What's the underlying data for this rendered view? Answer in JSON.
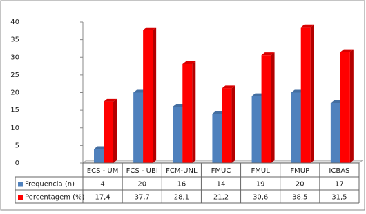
{
  "chart_data": {
    "type": "bar",
    "categories": [
      "ECS - UM",
      "FCS - UBI",
      "FCM-UNL",
      "FMUC",
      "FMUL",
      "FMUP",
      "ICBAS"
    ],
    "series": [
      {
        "name": "Frequencia (n)",
        "color": "#4f81bd",
        "values": [
          4,
          20,
          16,
          14,
          19,
          20,
          17
        ]
      },
      {
        "name": "Percentagem (%)",
        "color": "#ff0000",
        "values": [
          17.4,
          37.7,
          28.1,
          21.2,
          30.6,
          38.5,
          31.5
        ],
        "value_labels": [
          "17,4",
          "37,7",
          "28,1",
          "21,2",
          "30,6",
          "38,5",
          "31,5"
        ]
      }
    ],
    "ylim": [
      0,
      40
    ],
    "yticks": [
      0,
      5,
      10,
      15,
      20,
      25,
      30,
      35,
      40
    ]
  }
}
